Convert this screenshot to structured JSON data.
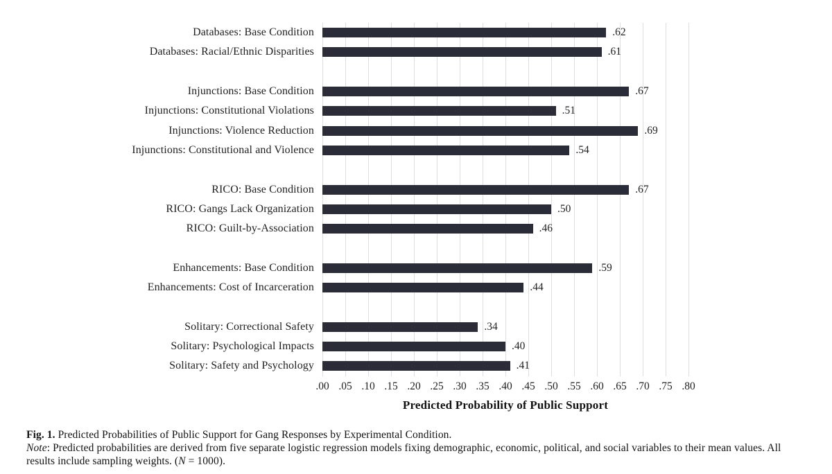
{
  "chart_data": {
    "type": "bar",
    "orientation": "horizontal",
    "title": "",
    "xlabel": "Predicted Probability of Public Support",
    "ylabel": "",
    "xlim": [
      0,
      0.8
    ],
    "grid": true,
    "legend": false,
    "bar_color": "#2a2d37",
    "gridline_color": "#dddde1",
    "x_ticks": [
      ".00",
      ".05",
      ".10",
      ".15",
      ".20",
      ".25",
      ".30",
      ".35",
      ".40",
      ".45",
      ".50",
      ".55",
      ".60",
      ".65",
      ".70",
      ".75",
      ".80"
    ],
    "groups": [
      {
        "name": "Databases",
        "bars": [
          {
            "label": "Databases: Base Condition",
            "value": 0.62,
            "value_label": ".62"
          },
          {
            "label": "Databases: Racial/Ethnic Disparities",
            "value": 0.61,
            "value_label": ".61"
          }
        ]
      },
      {
        "name": "Injunctions",
        "bars": [
          {
            "label": "Injunctions: Base Condition",
            "value": 0.67,
            "value_label": ".67"
          },
          {
            "label": "Injunctions: Constitutional Violations",
            "value": 0.51,
            "value_label": ".51"
          },
          {
            "label": "Injunctions: Violence Reduction",
            "value": 0.69,
            "value_label": ".69"
          },
          {
            "label": "Injunctions: Constitutional and Violence",
            "value": 0.54,
            "value_label": ".54"
          }
        ]
      },
      {
        "name": "RICO",
        "bars": [
          {
            "label": "RICO: Base Condition",
            "value": 0.67,
            "value_label": ".67"
          },
          {
            "label": "RICO: Gangs Lack Organization",
            "value": 0.5,
            "value_label": ".50"
          },
          {
            "label": "RICO: Guilt-by-Association",
            "value": 0.46,
            "value_label": ".46"
          }
        ]
      },
      {
        "name": "Enhancements",
        "bars": [
          {
            "label": "Enhancements: Base Condition",
            "value": 0.59,
            "value_label": ".59"
          },
          {
            "label": "Enhancements: Cost of Incarceration",
            "value": 0.44,
            "value_label": ".44"
          }
        ]
      },
      {
        "name": "Solitary",
        "bars": [
          {
            "label": "Solitary: Correctional Safety",
            "value": 0.34,
            "value_label": ".34"
          },
          {
            "label": "Solitary: Psychological Impacts",
            "value": 0.4,
            "value_label": ".40"
          },
          {
            "label": "Solitary: Safety and Psychology",
            "value": 0.41,
            "value_label": ".41"
          }
        ]
      }
    ]
  },
  "caption": {
    "fig_label": "Fig. 1.",
    "fig_text": " Predicted Probabilities of Public Support for Gang Responses by Experimental Condition.",
    "note_label": "Note",
    "note_body": ": Predicted probabilities are derived from five separate logistic regression models fixing demographic, economic, political, and social variables to their mean values. All results include sampling weights. (",
    "note_n": "N",
    "note_suffix": " = 1000)."
  }
}
